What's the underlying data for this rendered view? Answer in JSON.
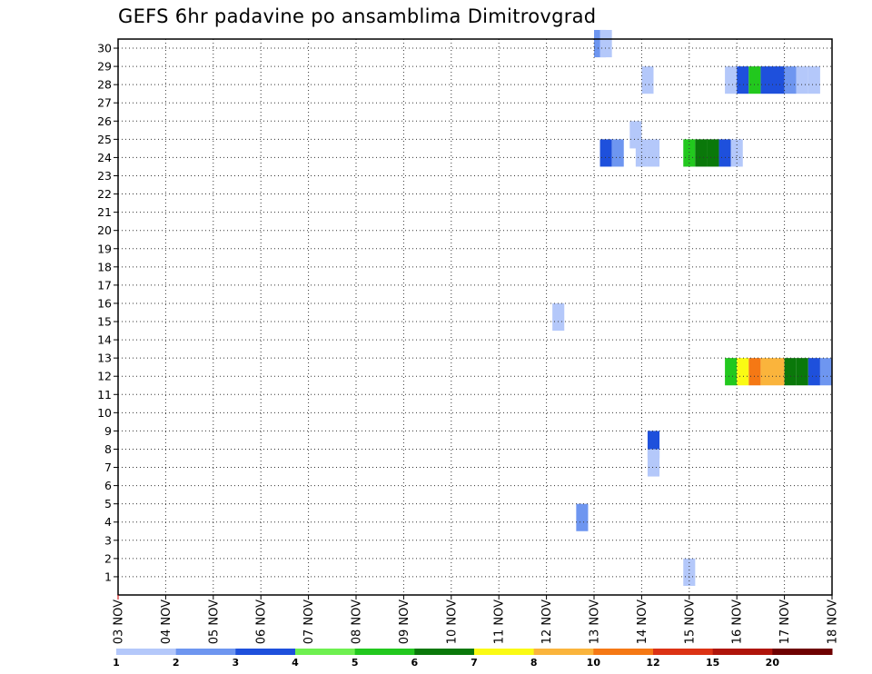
{
  "chart_data": {
    "type": "heatmap",
    "title": "GEFS 6hr padavine po ansamblima Dimitrovgrad",
    "x_ticks": [
      "03 NOV",
      "04 NOV",
      "05 NOV",
      "06 NOV",
      "07 NOV",
      "08 NOV",
      "09 NOV",
      "10 NOV",
      "11 NOV",
      "12 NOV",
      "13 NOV",
      "14 NOV",
      "15 NOV",
      "16 NOV",
      "17 NOV",
      "18 NOV"
    ],
    "y_ticks": [
      "1",
      "2",
      "3",
      "4",
      "5",
      "6",
      "7",
      "8",
      "9",
      "10",
      "11",
      "12",
      "13",
      "14",
      "15",
      "16",
      "17",
      "18",
      "19",
      "20",
      "21",
      "22",
      "23",
      "24",
      "25",
      "26",
      "27",
      "28",
      "29",
      "30"
    ],
    "x_range_days": [
      0,
      15
    ],
    "y_range": [
      0,
      30
    ],
    "grid": true,
    "colorbar": {
      "labels": [
        "1",
        "2",
        "3",
        "4",
        "5",
        "6",
        "7",
        "8",
        "10",
        "12",
        "15",
        "20"
      ],
      "colors": [
        "#b4c8fa",
        "#6e96f0",
        "#1e50dc",
        "#6ef050",
        "#22c81e",
        "#0a780a",
        "#fafa14",
        "#fab43c",
        "#f57814",
        "#dc3214",
        "#af140a",
        "#6e0000"
      ]
    },
    "cells": [
      {
        "day": 10.0,
        "member": 30,
        "value": 2
      },
      {
        "day": 10.125,
        "member": 30,
        "value": 1
      },
      {
        "day": 11.0,
        "member": 28,
        "value": 1
      },
      {
        "day": 12.75,
        "member": 28,
        "value": 1
      },
      {
        "day": 13.0,
        "member": 28,
        "value": 3
      },
      {
        "day": 13.25,
        "member": 28,
        "value": 5
      },
      {
        "day": 13.5,
        "member": 28,
        "value": 3
      },
      {
        "day": 13.75,
        "member": 28,
        "value": 3
      },
      {
        "day": 14.0,
        "member": 28,
        "value": 2
      },
      {
        "day": 14.25,
        "member": 28,
        "value": 1
      },
      {
        "day": 14.5,
        "member": 28,
        "value": 1
      },
      {
        "day": 10.75,
        "member": 25,
        "value": 1
      },
      {
        "day": 10.125,
        "member": 24,
        "value": 3
      },
      {
        "day": 10.375,
        "member": 24,
        "value": 2
      },
      {
        "day": 10.875,
        "member": 24,
        "value": 1
      },
      {
        "day": 11.125,
        "member": 24,
        "value": 1
      },
      {
        "day": 11.875,
        "member": 24,
        "value": 5
      },
      {
        "day": 12.125,
        "member": 24,
        "value": 6
      },
      {
        "day": 12.375,
        "member": 24,
        "value": 6
      },
      {
        "day": 12.625,
        "member": 24,
        "value": 3
      },
      {
        "day": 12.875,
        "member": 24,
        "value": 1
      },
      {
        "day": 9.125,
        "member": 15,
        "value": 1
      },
      {
        "day": 12.75,
        "member": 12,
        "value": 5
      },
      {
        "day": 13.0,
        "member": 12,
        "value": 7
      },
      {
        "day": 13.25,
        "member": 12,
        "value": 10
      },
      {
        "day": 13.5,
        "member": 12,
        "value": 8
      },
      {
        "day": 13.75,
        "member": 12,
        "value": 8
      },
      {
        "day": 14.0,
        "member": 12,
        "value": 6
      },
      {
        "day": 14.25,
        "member": 12,
        "value": 6
      },
      {
        "day": 14.5,
        "member": 12,
        "value": 3
      },
      {
        "day": 14.75,
        "member": 12,
        "value": 2
      },
      {
        "day": 11.125,
        "member": 8,
        "value": 3
      },
      {
        "day": 11.125,
        "member": 7,
        "value": 1
      },
      {
        "day": 9.625,
        "member": 4,
        "value": 2
      },
      {
        "day": 11.875,
        "member": 1,
        "value": 1
      }
    ]
  }
}
